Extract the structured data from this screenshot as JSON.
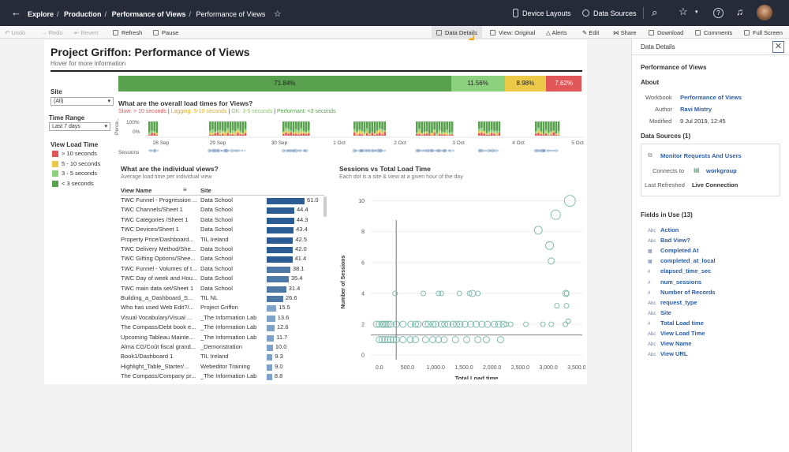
{
  "breadcrumb": {
    "explore": "Explore",
    "production": "Production",
    "workbook": "Performance of Views",
    "view": "Performance of Views"
  },
  "topbar": {
    "device_layouts": "Device Layouts",
    "data_sources": "Data Sources"
  },
  "toolbar": {
    "undo": "Undo",
    "redo": "Redo",
    "revert": "Revert",
    "refresh": "Refresh",
    "pause": "Pause",
    "data_details": "Data Details",
    "view_original": "View: Original",
    "alerts": "Alerts",
    "edit": "Edit",
    "share": "Share",
    "download": "Download",
    "comments": "Comments",
    "fullscreen": "Full Screen"
  },
  "dashboard": {
    "title": "Project Griffon: Performance of Views",
    "subtitle": "Hover for more information",
    "site_label": "Site",
    "site_value": "(All)",
    "time_label": "Time Range",
    "time_value": "Last 7 days",
    "legend_title": "View Load Time",
    "legend": [
      {
        "label": "> 10 seconds",
        "color": "#e15759"
      },
      {
        "label": "5 - 10 seconds",
        "color": "#edc948"
      },
      {
        "label": "3 - 5 seconds",
        "color": "#8cd17d"
      },
      {
        "label": "< 3 seconds",
        "color": "#59a14f"
      }
    ],
    "summary": [
      {
        "value": "71.84%",
        "pct": 71.84,
        "color": "#59a14f"
      },
      {
        "value": "11.56%",
        "pct": 11.56,
        "color": "#8cd17d"
      },
      {
        "value": "8.98%",
        "pct": 8.98,
        "color": "#edc948"
      },
      {
        "value": "7.62%",
        "pct": 7.62,
        "color": "#e15759"
      }
    ],
    "load_title": "What are the overall load times for Views?",
    "load_sub": {
      "slow": "Slow: > 10 seconds",
      "lagging": "Lagging: 5-10 seconds",
      "ok": "OK: 3-5 seconds",
      "perf": "Performant: <3 seconds"
    },
    "perc_axis": [
      "100%",
      "0%"
    ],
    "perc_label": "Perce..",
    "sessions_label": "Sessions",
    "dates": [
      "28 Sep",
      "29 Sep",
      "30 Sep",
      "1 Oct",
      "2 Oct",
      "3 Oct",
      "4 Oct",
      "5 Oct"
    ],
    "views_title": "What are the individual views?",
    "views_sub": "Average load time per individual view",
    "col_view": "View Name",
    "col_site": "Site",
    "views": [
      {
        "name": "TWC Funnel - Progression ...",
        "site": "Data School",
        "value": 61.0
      },
      {
        "name": "TWC Channels/Sheet 1",
        "site": "Data School",
        "value": 44.4
      },
      {
        "name": "TWC Categories /Sheet 1",
        "site": "Data School",
        "value": 44.3
      },
      {
        "name": "TWC Devices/Sheet 1",
        "site": "Data School",
        "value": 43.4
      },
      {
        "name": "Property Price/Dashboard...",
        "site": "TIL Ireland",
        "value": 42.5
      },
      {
        "name": "TWC Delivery Method/She...",
        "site": "Data School",
        "value": 42.0
      },
      {
        "name": "TWC Gifting Options/Shee...",
        "site": "Data School",
        "value": 41.4
      },
      {
        "name": "TWC Funnel - Volumes of t...",
        "site": "Data School",
        "value": 38.1
      },
      {
        "name": "TWC Day of week and Hou...",
        "site": "Data School",
        "value": 35.4
      },
      {
        "name": "TWC main data set/Sheet 1",
        "site": "Data School",
        "value": 31.4
      },
      {
        "name": "Building_a_Dashboard_S...",
        "site": "TIL NL",
        "value": 26.6
      },
      {
        "name": "Who has used Web Edit?/...",
        "site": "Project Griffon",
        "value": 15.5
      },
      {
        "name": "Visual Vocabulary/Visual ...",
        "site": "_The Information Lab",
        "value": 13.6
      },
      {
        "name": "The Compass/Debt book e...",
        "site": "_The Information Lab",
        "value": 12.6
      },
      {
        "name": "Upcoming Tableau Mainte...",
        "site": "_The Information Lab",
        "value": 11.7
      },
      {
        "name": "Alma CG/Coût fiscal grand...",
        "site": "_Demonstration",
        "value": 10.0
      },
      {
        "name": "Book1/Dashboard 1",
        "site": "TIL Ireland",
        "value": 9.3
      },
      {
        "name": "Highlight_Table_Starter/...",
        "site": "Webeditor Training",
        "value": 9.0
      },
      {
        "name": "The Compass/Company pr...",
        "site": "_The Information Lab",
        "value": 8.8
      }
    ],
    "scatter_title": "Sessions vs Total Load Time",
    "scatter_sub": "Each dot is a site & view at a given hour of the day",
    "scatter_ylabel": "Number of Sessions",
    "scatter_xlabel": "Total Load time"
  },
  "chart_data": {
    "type": "scatter",
    "title": "Sessions vs Total Load Time",
    "xlabel": "Total Load time",
    "ylabel": "Number of Sessions",
    "xlim": [
      -150,
      3600
    ],
    "ylim": [
      -0.3,
      10.8
    ],
    "xticks": [
      "0.0",
      "500.0",
      "1,000.0",
      "1,500.0",
      "2,000.0",
      "2,500.0",
      "3,000.0",
      "3,500.0"
    ],
    "yticks": [
      "0",
      "2",
      "4",
      "6",
      "8",
      "10"
    ],
    "x": [
      3380,
      3130,
      2820,
      3020,
      3050,
      3310,
      3150,
      3320,
      3350,
      280,
      780,
      1050,
      1100,
      1420,
      1600,
      1650,
      1750,
      3320,
      2250,
      2330,
      3050,
      3300,
      2600,
      2900,
      -50,
      0,
      50,
      80,
      120,
      160,
      200,
      300,
      420,
      560,
      640,
      690,
      820,
      870,
      950,
      1000,
      1100,
      1160,
      1220,
      1310,
      1370,
      1430,
      1520,
      1620,
      1720,
      1820,
      1920,
      2040,
      2120,
      2200,
      0,
      50,
      100,
      150,
      200,
      250,
      300,
      420,
      550,
      640,
      820,
      950,
      1050,
      1150,
      1350,
      1550,
      1750,
      1900,
      2150
    ],
    "y": [
      10,
      9.1,
      8.1,
      7.1,
      6.1,
      4,
      3.2,
      3.2,
      2.2,
      4,
      4,
      4,
      4,
      4,
      4,
      4,
      4,
      4,
      2,
      2,
      2,
      2,
      2,
      2,
      2,
      2,
      2,
      2,
      2,
      2,
      2,
      2,
      2,
      2,
      2,
      2,
      2,
      2,
      2,
      2,
      2,
      2,
      2,
      2,
      2,
      2,
      2,
      2,
      2,
      2,
      2,
      2,
      2,
      2,
      1,
      1,
      1,
      1,
      1,
      1,
      1,
      1,
      1,
      1,
      1,
      1,
      1,
      1,
      1,
      1,
      1,
      1,
      1
    ],
    "size": [
      7,
      6,
      5,
      5,
      4,
      4,
      3,
      3,
      3,
      3,
      3,
      3,
      3,
      3,
      3,
      4,
      3,
      3,
      3,
      3,
      3,
      3,
      3,
      3,
      4,
      4,
      4,
      4,
      4,
      4,
      4,
      4,
      4,
      4,
      4,
      4,
      4,
      4,
      4,
      4,
      4,
      4,
      4,
      4,
      4,
      4,
      4,
      4,
      4,
      4,
      4,
      4,
      4,
      4,
      4,
      4,
      4,
      4,
      4,
      4,
      4,
      4,
      4,
      4,
      4,
      4,
      4,
      4,
      4,
      4,
      4,
      4,
      4
    ]
  },
  "panel": {
    "header": "Data Details",
    "view_title": "Performance of Views",
    "about": "About",
    "workbook_label": "Workbook",
    "workbook_value": "Performance of Views",
    "author_label": "Author",
    "author_value": "Ravi Mistry",
    "modified_label": "Modified",
    "modified_value": "9 Jul 2019, 12:45",
    "sources_label": "Data Sources (1)",
    "source_name": "Monitor Requests And Users",
    "connects_label": "Connects to",
    "connects_value": "workgroup",
    "refreshed_label": "Last Refreshed",
    "refreshed_value": "Live Connection",
    "fields_label": "Fields in Use (13)",
    "fields": [
      {
        "t": "Abc",
        "n": "Action"
      },
      {
        "t": "Abc",
        "n": "Bad View?"
      },
      {
        "t": "▦",
        "n": "Completed At"
      },
      {
        "t": "▦",
        "n": "completed_at_local"
      },
      {
        "t": "#",
        "n": "elapsed_time_sec"
      },
      {
        "t": "#",
        "n": "num_sessions"
      },
      {
        "t": "#",
        "n": "Number of Records"
      },
      {
        "t": "Abc",
        "n": "request_type"
      },
      {
        "t": "Abc",
        "n": "Site"
      },
      {
        "t": "#",
        "n": "Total Load time"
      },
      {
        "t": "Abc",
        "n": "View Load Time"
      },
      {
        "t": "Abc",
        "n": "View Name"
      },
      {
        "t": "Abc",
        "n": "View URL"
      }
    ]
  }
}
